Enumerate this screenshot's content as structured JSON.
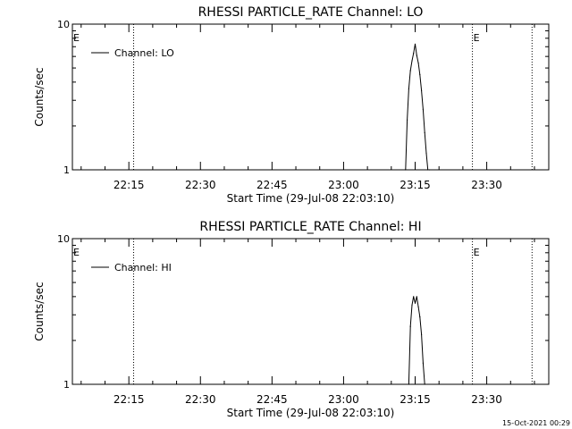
{
  "chart_data": [
    {
      "type": "line",
      "title": "RHESSI PARTICLE_RATE Channel: LO",
      "ylabel": "Counts/sec",
      "xlabel": "Start Time (29-Jul-08 22:03:10)",
      "y_scale": "log",
      "ylim": [
        1,
        10
      ],
      "y_ticks": [
        {
          "value": 1,
          "label": "1"
        },
        {
          "value": 10,
          "label": "10"
        }
      ],
      "xlim": [
        "22:03:10",
        "23:43:00"
      ],
      "x_ticks": [
        "22:15",
        "22:30",
        "22:45",
        "23:00",
        "23:15",
        "23:30"
      ],
      "legend": {
        "position": "top-left",
        "entries": [
          "Channel: LO"
        ]
      },
      "series": [
        {
          "name": "Channel: LO",
          "x": [
            "23:13:00",
            "23:13:20",
            "23:13:40",
            "23:14:00",
            "23:14:20",
            "23:14:40",
            "23:15:00",
            "23:15:20",
            "23:15:40",
            "23:16:00",
            "23:16:20",
            "23:16:40",
            "23:17:00",
            "23:17:20",
            "23:17:40",
            "23:18:00"
          ],
          "values": [
            1.0,
            2.2,
            3.6,
            4.8,
            5.6,
            6.3,
            7.3,
            6.1,
            5.4,
            4.5,
            3.5,
            2.6,
            1.8,
            1.3,
            1.0,
            1.0
          ]
        }
      ],
      "markers": [
        {
          "time": "22:16:00",
          "label": ""
        },
        {
          "time": "23:27:00",
          "label": "E"
        },
        {
          "time": "23:39:30",
          "label": ""
        }
      ],
      "edge_label": "E"
    },
    {
      "type": "line",
      "title": "RHESSI PARTICLE_RATE Channel: HI",
      "ylabel": "Counts/sec",
      "xlabel": "Start Time (29-Jul-08 22:03:10)",
      "y_scale": "log",
      "ylim": [
        1,
        10
      ],
      "y_ticks": [
        {
          "value": 1,
          "label": "1"
        },
        {
          "value": 10,
          "label": "10"
        }
      ],
      "xlim": [
        "22:03:10",
        "23:43:00"
      ],
      "x_ticks": [
        "22:15",
        "22:30",
        "22:45",
        "23:00",
        "23:15",
        "23:30"
      ],
      "legend": {
        "position": "top-left",
        "entries": [
          "Channel: HI"
        ]
      },
      "series": [
        {
          "name": "Channel: HI",
          "x": [
            "23:13:40",
            "23:14:00",
            "23:14:20",
            "23:14:40",
            "23:15:00",
            "23:15:20",
            "23:15:40",
            "23:16:00",
            "23:16:20",
            "23:16:40",
            "23:17:00"
          ],
          "values": [
            1.0,
            2.5,
            3.5,
            4.0,
            3.6,
            4.0,
            3.4,
            2.9,
            2.2,
            1.4,
            1.0
          ]
        }
      ],
      "markers": [
        {
          "time": "22:16:00",
          "label": ""
        },
        {
          "time": "23:27:00",
          "label": "E"
        },
        {
          "time": "23:39:30",
          "label": ""
        }
      ],
      "edge_label": "E"
    }
  ],
  "footer": {
    "timestamp": "15-Oct-2021 00:29"
  }
}
